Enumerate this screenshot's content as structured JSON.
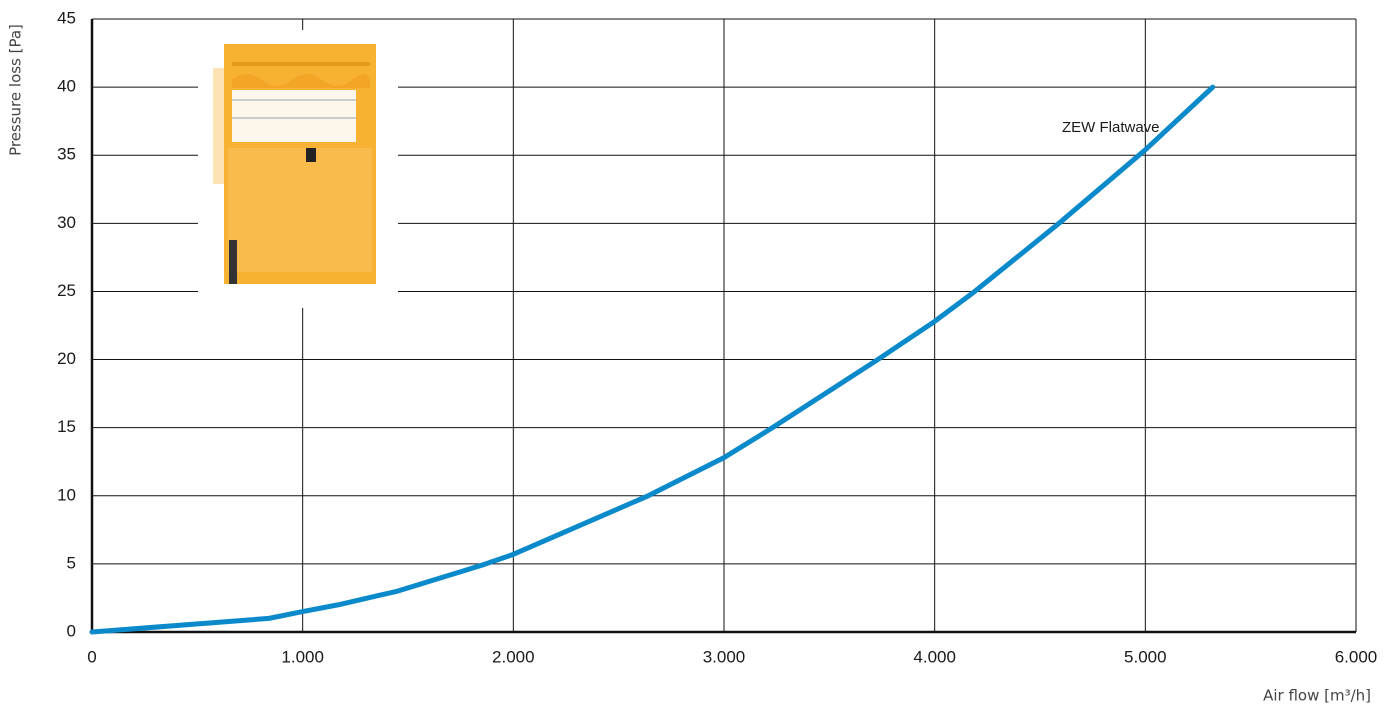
{
  "chart_data": {
    "type": "line",
    "y_label": "Pressure loss [Pa]",
    "x_label": "Air flow [m³/h]",
    "x": [
      0,
      840,
      1000,
      1170,
      1450,
      1850,
      2000,
      2640,
      3000,
      3230,
      3730,
      4000,
      4190,
      4590,
      5000,
      5320
    ],
    "series": [
      {
        "name": "ZEW Flatwave",
        "color": "#0a8acb",
        "values": [
          0,
          1,
          1.5,
          2,
          3,
          4.9,
          5.7,
          10,
          12.8,
          15,
          20,
          22.8,
          25,
          30,
          35.4,
          40
        ]
      }
    ],
    "xlim": [
      0,
      6000
    ],
    "xticks": [
      0,
      {
        "value": 1000,
        "label": "1.000"
      },
      {
        "value": 2000,
        "label": "2.000"
      },
      {
        "value": 3000,
        "label": "3.000"
      },
      {
        "value": 4000,
        "label": "4.000"
      },
      {
        "value": 5000,
        "label": "5.000"
      },
      {
        "value": 6000,
        "label": "6.000"
      }
    ],
    "ylim": [
      0,
      45
    ],
    "yticks": [
      0,
      5,
      10,
      15,
      20,
      25,
      30,
      35,
      40,
      45
    ],
    "grid": true
  }
}
